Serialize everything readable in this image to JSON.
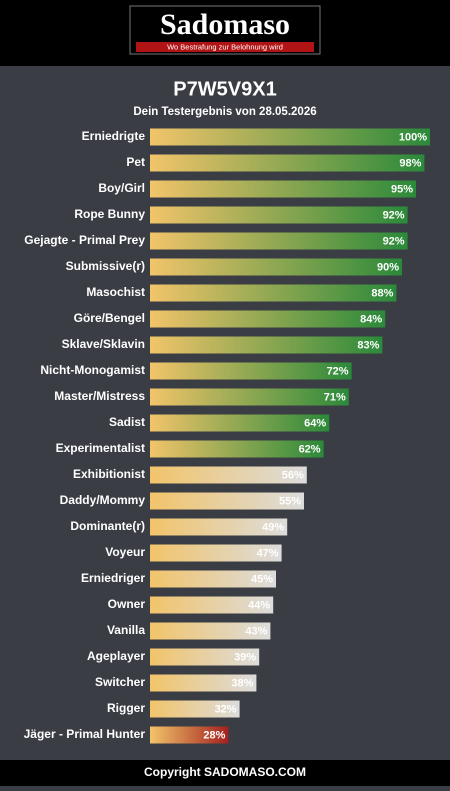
{
  "header": {
    "logo": "Sadomaso",
    "tagline": "Wo Bestrafung zur Belohnung wird"
  },
  "chart_data": {
    "type": "bar",
    "title": "P7W5V9X1",
    "subtitle": "Dein Testergebnis von 28.05.2026",
    "categories": [
      "Erniedrigte",
      "Pet",
      "Boy/Girl",
      "Rope Bunny",
      "Gejagte - Primal Prey",
      "Submissive(r)",
      "Masochist",
      "Göre/Bengel",
      "Sklave/Sklavin",
      "Nicht-Monogamist",
      "Master/Mistress",
      "Sadist",
      "Experimentalist",
      "Exhibitionist",
      "Daddy/Mommy",
      "Dominante(r)",
      "Voyeur",
      "Erniedriger",
      "Owner",
      "Vanilla",
      "Ageplayer",
      "Switcher",
      "Rigger",
      "Jäger - Primal Hunter"
    ],
    "values": [
      100,
      98,
      95,
      92,
      92,
      90,
      88,
      84,
      83,
      72,
      71,
      64,
      62,
      56,
      55,
      49,
      47,
      45,
      44,
      43,
      39,
      38,
      32,
      28
    ],
    "value_labels": [
      "100%",
      "98%",
      "95%",
      "92%",
      "92%",
      "90%",
      "88%",
      "84%",
      "83%",
      "72%",
      "71%",
      "64%",
      "62%",
      "56%",
      "55%",
      "49%",
      "47%",
      "45%",
      "44%",
      "43%",
      "39%",
      "38%",
      "32%",
      "28%"
    ],
    "colors": [
      "#2a8a3a",
      "#2a8a3a",
      "#2a8a3a",
      "#2a8a3a",
      "#2a8a3a",
      "#2a8a3a",
      "#2a8a3a",
      "#2a8a3a",
      "#2a8a3a",
      "#2a8a3a",
      "#2a8a3a",
      "#2a8a3a",
      "#2a8a3a",
      "#dcdcdc",
      "#dcdcdc",
      "#dcdcdc",
      "#dcdcdc",
      "#dcdcdc",
      "#dcdcdc",
      "#dcdcdc",
      "#dcdcdc",
      "#dcdcdc",
      "#dcdcdc",
      "#a3201e"
    ],
    "start_color": "#f2c46a",
    "xlim": [
      0,
      100
    ]
  },
  "footer": "Copyright SADOMASO.COM"
}
